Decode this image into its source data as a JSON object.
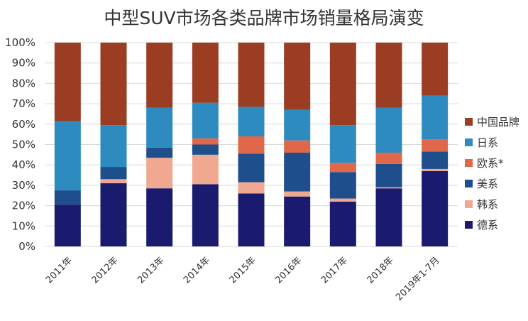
{
  "chart_data": {
    "type": "bar",
    "stacked": true,
    "percent": true,
    "title": "中型SUV市场各类品牌市场销量格局演变",
    "xlabel": "",
    "ylabel": "",
    "ylim": [
      0,
      100
    ],
    "yticks": [
      "0%",
      "10%",
      "20%",
      "30%",
      "40%",
      "50%",
      "60%",
      "70%",
      "80%",
      "90%",
      "100%"
    ],
    "categories": [
      "2011年",
      "2012年",
      "2013年",
      "2014年",
      "2015年",
      "2016年",
      "2017年",
      "2018年",
      "2019年1-7月"
    ],
    "legend_position": "right",
    "grid": true,
    "series": [
      {
        "name": "德系",
        "color": "#1a1a6e",
        "values": [
          20.5,
          31.0,
          28.5,
          30.5,
          26.0,
          24.5,
          22.0,
          28.5,
          37.0
        ]
      },
      {
        "name": "韩系",
        "color": "#f0a890",
        "values": [
          0,
          2.0,
          15.0,
          14.5,
          5.5,
          2.5,
          1.5,
          0.5,
          1.0
        ]
      },
      {
        "name": "美系",
        "color": "#1f4e8c",
        "values": [
          7.0,
          6.0,
          5.0,
          5.0,
          14.0,
          19.0,
          13.0,
          11.5,
          8.5
        ]
      },
      {
        "name": "欧系*",
        "color": "#e0674a",
        "values": [
          0,
          0,
          0,
          3.0,
          8.5,
          6.0,
          4.5,
          5.5,
          6.0
        ]
      },
      {
        "name": "日系",
        "color": "#2e8bc0",
        "values": [
          34.0,
          20.5,
          19.5,
          17.5,
          14.5,
          15.0,
          18.5,
          22.0,
          21.5
        ]
      },
      {
        "name": "中国品牌",
        "color": "#9a3d22",
        "values": [
          38.5,
          40.5,
          32.0,
          29.5,
          31.5,
          33.0,
          40.5,
          32.0,
          26.0
        ]
      }
    ]
  }
}
